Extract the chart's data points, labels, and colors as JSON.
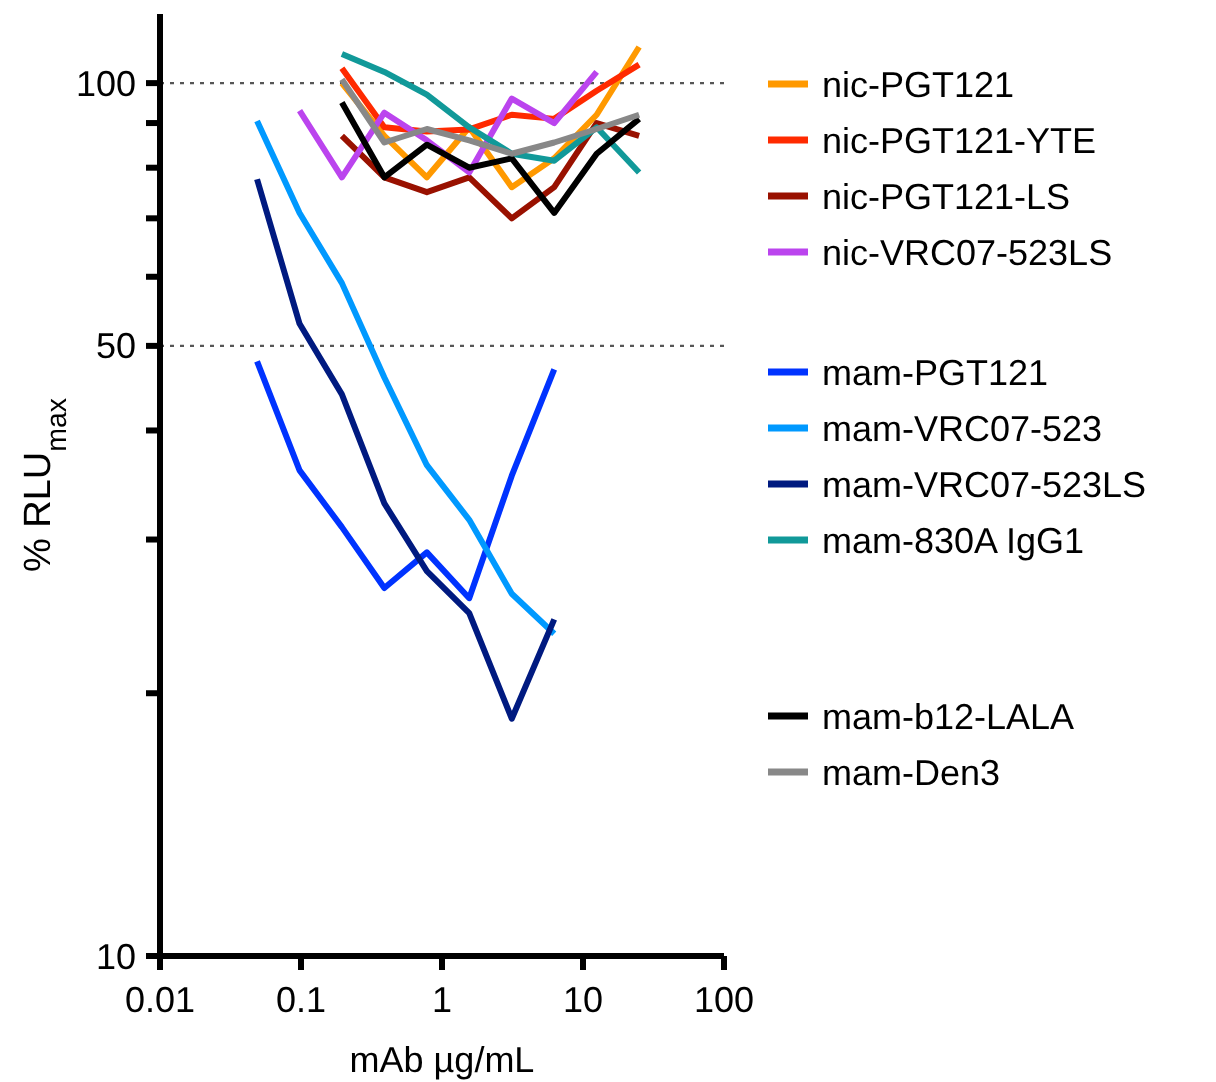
{
  "chart_data": {
    "type": "line",
    "xlabel": "mAb µg/mL",
    "ylabel": "% RLU$_{max}$",
    "log": "xy",
    "xlim": [
      0.01,
      100
    ],
    "xticks": [
      0.01,
      0.1,
      1,
      10,
      100
    ],
    "ylim": [
      10,
      120
    ],
    "yticks": [
      10,
      {
        "value": 20,
        "label": null
      },
      {
        "value": 30,
        "label": null
      },
      {
        "value": 40,
        "label": null
      },
      50,
      {
        "value": 60,
        "label": null
      },
      {
        "value": 70,
        "label": null
      },
      {
        "value": 80,
        "label": null
      },
      {
        "value": 90,
        "label": null
      },
      100
    ],
    "ref_lines": [
      {
        "axis": "y",
        "value": 50,
        "line_style": "dotted",
        "color": "#555555"
      },
      {
        "axis": "y",
        "value": 100,
        "line_style": "dotted",
        "color": "#555555"
      }
    ],
    "legend": "right",
    "marker": "none",
    "line_style": "solid",
    "series": [
      {
        "name": "nic-PGT121",
        "color": "#ff9900",
        "x": [
          0.195,
          0.39,
          0.781,
          1.56,
          3.125,
          6.25,
          12.5,
          25
        ],
        "values": [
          100,
          87,
          78,
          89,
          76,
          82,
          92,
          110
        ]
      },
      {
        "name": "nic-PGT121-YTE",
        "color": "#ff2a00",
        "x": [
          0.195,
          0.39,
          0.781,
          1.56,
          3.125,
          6.25,
          12.5,
          25
        ],
        "values": [
          104,
          89,
          88,
          88.5,
          92,
          91,
          98,
          105
        ]
      },
      {
        "name": "nic-PGT121-LS",
        "color": "#991100",
        "x": [
          0.195,
          0.39,
          0.781,
          1.56,
          3.125,
          6.25,
          12.5,
          25
        ],
        "values": [
          87,
          78,
          75,
          78,
          70,
          76,
          90,
          87
        ]
      },
      {
        "name": "nic-VRC07-523LS",
        "color": "#bb44ee",
        "x": [
          0.0977,
          0.195,
          0.39,
          0.781,
          1.56,
          3.125,
          6.25,
          12.5
        ],
        "values": [
          93,
          78,
          92.5,
          86,
          79,
          96,
          90,
          103
        ]
      },
      {
        "name": "mam-PGT121",
        "color": "#0033ff",
        "x": [
          0.0488,
          0.0977,
          0.195,
          0.39,
          0.781,
          1.56,
          3.125,
          6.25
        ],
        "values": [
          48,
          36,
          31,
          26.4,
          29,
          25.7,
          35.5,
          47
        ]
      },
      {
        "name": "mam-VRC07-523",
        "color": "#0099ff",
        "x": [
          0.0488,
          0.0977,
          0.195,
          0.39,
          0.781,
          1.56,
          3.125,
          6.25
        ],
        "values": [
          90.5,
          71,
          59,
          46,
          36.5,
          31.6,
          26,
          23.4
        ]
      },
      {
        "name": "mam-VRC07-523LS",
        "color": "#001a80",
        "x": [
          0.0488,
          0.0977,
          0.195,
          0.39,
          0.781,
          1.56,
          3.125,
          6.25
        ],
        "values": [
          77.6,
          53,
          44,
          33,
          27.6,
          24.7,
          18.7,
          24.3
        ]
      },
      {
        "name": "mam-830A IgG1",
        "color": "#119999",
        "x": [
          0.195,
          0.39,
          0.781,
          1.56,
          3.125,
          6.25,
          12.5,
          25
        ],
        "values": [
          108,
          103,
          97,
          89,
          83,
          81.5,
          89,
          79
        ]
      },
      {
        "name": "mam-b12-LALA",
        "color": "#000000",
        "x": [
          0.195,
          0.39,
          0.781,
          1.56,
          3.125,
          6.25,
          12.5,
          25
        ],
        "values": [
          95,
          78,
          85,
          80,
          82,
          71,
          83,
          91
        ]
      },
      {
        "name": "mam-Den3",
        "color": "#888888",
        "x": [
          0.195,
          0.39,
          0.781,
          1.56,
          3.125,
          6.25,
          12.5,
          25
        ],
        "values": [
          101,
          85.5,
          88.6,
          86,
          83,
          85.5,
          88.6,
          92
        ]
      }
    ]
  }
}
